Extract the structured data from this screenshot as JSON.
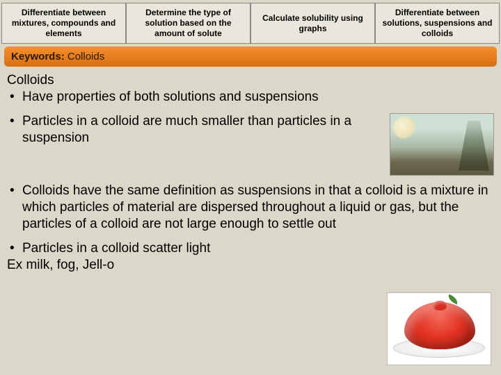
{
  "tabs": [
    "Differentiate between mixtures, compounds and elements",
    "Determine the type of solution based on the amount of solute",
    "Calculate solubility using graphs",
    "Differentiate between solutions, suspensions and colloids"
  ],
  "keywords": {
    "label": "Keywords:",
    "value": "Colloids"
  },
  "heading": "Colloids",
  "bullet1": "Have properties of both solutions and suspensions",
  "bullet2": "Particles in a colloid are much smaller than particles in a suspension",
  "bullet3": "Colloids have the same definition as suspensions in that a colloid is a mixture in which particles of material are dispersed throughout a liquid or gas, but the particles of a colloid are not large enough to settle out",
  "bullet4": "Particles in a colloid scatter light",
  "examples": "Ex milk, fog, Jell-o",
  "colors": {
    "page_bg": "#dbd8c9",
    "tab_bg": "#e9e7db",
    "bar_top": "#f5902c",
    "bar_bottom": "#d86f12",
    "text": "#000000"
  },
  "images": {
    "fog": "fog-landscape",
    "jello": "red-jello-on-plate"
  }
}
